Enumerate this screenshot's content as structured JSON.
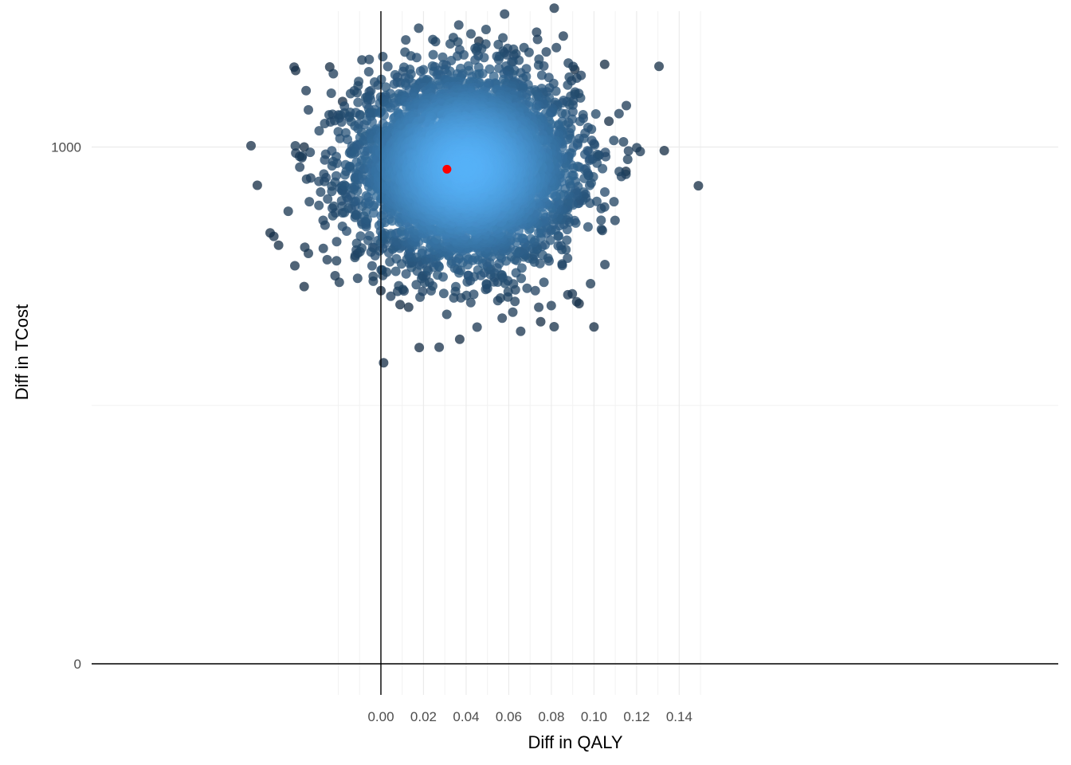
{
  "chart_data": {
    "type": "scatter",
    "title": "",
    "xlabel": "Diff in QALY",
    "ylabel": "Diff in TCost",
    "xlim": [
      -0.068,
      0.158
    ],
    "ylim": [
      -55,
      1270
    ],
    "x_ticks": [
      0.0,
      0.02,
      0.04,
      0.06,
      0.08,
      0.1,
      0.12,
      0.14
    ],
    "x_tick_labels": [
      "0.00",
      "0.02",
      "0.04",
      "0.06",
      "0.08",
      "0.10",
      "0.12",
      "0.14"
    ],
    "y_ticks": [
      0,
      1000
    ],
    "y_tick_labels": [
      "0",
      "1000"
    ],
    "x_minor_gridlines": [
      -0.02,
      -0.01,
      0.01,
      0.03,
      0.05,
      0.07,
      0.09,
      0.11,
      0.13,
      0.15
    ],
    "y_minor_gridlines": [
      500
    ],
    "reference_lines": {
      "x": 0,
      "y": 0
    },
    "grid": true,
    "legend": "none",
    "series": [
      {
        "kind": "simulations",
        "color_dense": "#56b1f7",
        "color_sparse": "#132b43",
        "point_summary": {
          "n": 5000,
          "center_x": 0.04,
          "center_y": 960,
          "sd_x": 0.025,
          "sd_y": 90
        },
        "outliers": [
          [
            -0.04,
            1148
          ],
          [
            -0.058,
            926
          ],
          [
            -0.052,
            834
          ],
          [
            -0.036,
            1000
          ],
          [
            -0.024,
            1155
          ],
          [
            -0.018,
            1088
          ],
          [
            0.046,
            1205
          ],
          [
            0.091,
            1150
          ],
          [
            0.105,
            1160
          ],
          [
            0.107,
            1050
          ],
          [
            0.133,
            993
          ],
          [
            0.149,
            925
          ],
          [
            0.115,
            953
          ],
          [
            0.1,
            652
          ],
          [
            0.093,
            697
          ],
          [
            0.075,
            662
          ],
          [
            0.018,
            612
          ],
          [
            0.037,
            628
          ],
          [
            -0.036,
            730
          ],
          [
            -0.048,
            810
          ],
          [
            0.0,
            722
          ],
          [
            0.009,
            695
          ],
          [
            0.013,
            690
          ]
        ]
      },
      {
        "kind": "mean",
        "color": "#ff0000",
        "points": [
          [
            0.031,
            957
          ]
        ]
      }
    ]
  }
}
